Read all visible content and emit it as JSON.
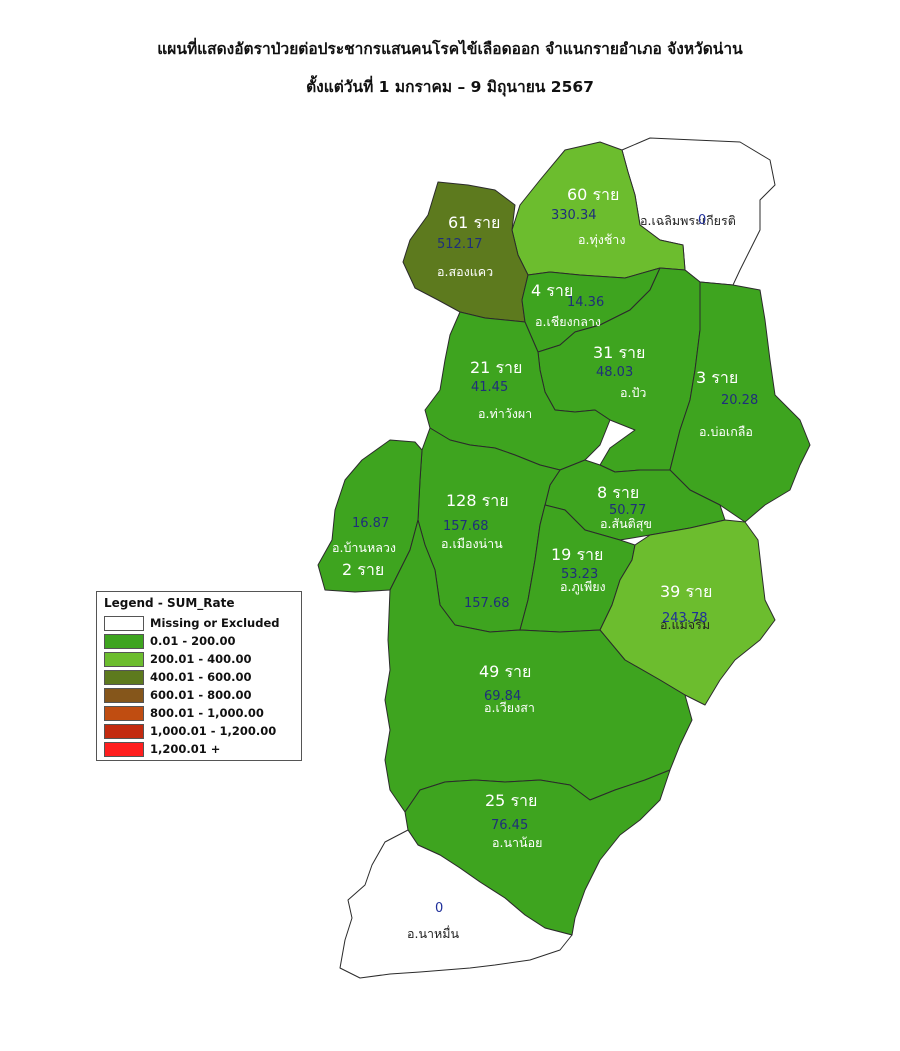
{
  "title": {
    "line1": "แผนที่แสดงอัตราป่วยต่อประชากรแสนคนโรคไข้เลือดออก จำแนกรายอำเภอ จังหวัดน่าน",
    "line2": "ตั้งแต่วันที่ 1 มกราคม – 9 มิถุนายน 2567"
  },
  "colors": {
    "missing": "#ffffff",
    "c0_200": "#3ea41f",
    "c200_400": "#6cbd2e",
    "c400_600": "#5d7a1e",
    "c600_800": "#85561b",
    "c800_1000": "#c04d11",
    "c1000_1200": "#c32a0f",
    "c1200p": "#ff1e1e"
  },
  "legend": {
    "title": "Legend - SUM_Rate",
    "items": [
      {
        "label": "Missing or Excluded",
        "color": "#ffffff"
      },
      {
        "label": "0.01 - 200.00",
        "color": "#3ea41f"
      },
      {
        "label": "200.01 - 400.00",
        "color": "#6cbd2e"
      },
      {
        "label": "400.01 - 600.00",
        "color": "#5d7a1e"
      },
      {
        "label": "600.01 - 800.00",
        "color": "#85561b"
      },
      {
        "label": "800.01 - 1,000.00",
        "color": "#c04d11"
      },
      {
        "label": "1,000.01 - 1,200.00",
        "color": "#c32a0f"
      },
      {
        "label": "1,200.01 +",
        "color": "#ff1e1e"
      }
    ]
  },
  "districts": {
    "chaloem": {
      "name": "อ.เฉลิมพระเกียรติ",
      "rate": "0",
      "cases": ""
    },
    "thungchang": {
      "name": "อ.ทุ่งช้าง",
      "rate": "330.34",
      "cases": "60 ราย"
    },
    "songkhwae": {
      "name": "อ.สองแคว",
      "rate": "512.17",
      "cases": "61 ราย"
    },
    "chiangklang": {
      "name": "อ.เชียงกลาง",
      "rate": "14.36",
      "cases": "4 ราย"
    },
    "pua": {
      "name": "อ.ปัว",
      "rate": "48.03",
      "cases": "31 ราย"
    },
    "thawangpha": {
      "name": "อ.ท่าวังผา",
      "rate": "41.45",
      "cases": "21 ราย"
    },
    "bokluea": {
      "name": "อ.บ่อเกลือ",
      "rate": "20.28",
      "cases": "3 ราย"
    },
    "santisuk": {
      "name": "อ.สันติสุข",
      "rate": "50.77",
      "cases": "8 ราย"
    },
    "mueang": {
      "name": "อ.เมืองน่าน",
      "rate": "157.68",
      "cases": "128 ราย",
      "rate_extra": "157.68"
    },
    "banluang": {
      "name": "อ.บ้านหลวง",
      "rate": "16.87",
      "cases": "2 ราย"
    },
    "phuphiang": {
      "name": "อ.ภูเพียง",
      "rate": "53.23",
      "cases": "19 ราย"
    },
    "maecharim": {
      "name": "อ.แม่จริม",
      "rate": "243.78",
      "cases": "39 ราย"
    },
    "wiangsa": {
      "name": "อ.เวียงสา",
      "rate": "69.84",
      "cases": "49 ราย"
    },
    "nanoi": {
      "name": "อ.นาน้อย",
      "rate": "76.45",
      "cases": "25 ราย"
    },
    "namuen": {
      "name": "อ.นาหมื่น",
      "rate": "0",
      "cases": ""
    }
  }
}
